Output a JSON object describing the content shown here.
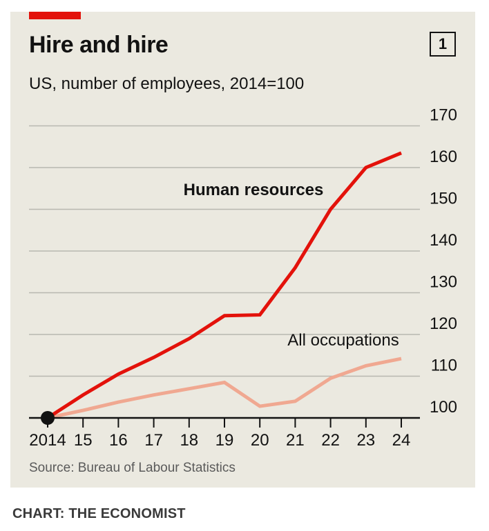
{
  "header": {
    "title": "Hire and hire",
    "subtitle": "US, number of employees, 2014=100",
    "chart_number": "1"
  },
  "footer": {
    "source": "Source: Bureau of Labour Statistics",
    "credit": "CHART: THE ECONOMIST"
  },
  "colors": {
    "background": "#ebe9e0",
    "accent": "#e3120b",
    "human_resources": "#e3120b",
    "all_occupations": "#f0a891",
    "axis": "#121212",
    "grid": "#b8b8b0"
  },
  "chart_data": {
    "type": "line",
    "title": "Hire and hire",
    "subtitle": "US, number of employees, 2014=100",
    "xlabel": "",
    "ylabel": "",
    "x": [
      "2014",
      "15",
      "16",
      "17",
      "18",
      "19",
      "20",
      "21",
      "22",
      "23",
      "24"
    ],
    "ylim": [
      100,
      170
    ],
    "yticks": [
      100,
      110,
      120,
      130,
      140,
      150,
      160,
      170
    ],
    "grid": true,
    "series": [
      {
        "name": "Human resources",
        "label": "Human resources",
        "color": "#e3120b",
        "values": [
          100,
          105.5,
          110.5,
          114.5,
          119,
          124.5,
          124.7,
          136,
          150,
          160,
          163.5
        ]
      },
      {
        "name": "All occupations",
        "label": "All occupations",
        "color": "#f0a891",
        "values": [
          100,
          101.8,
          103.8,
          105.5,
          107,
          108.5,
          102.8,
          104,
          109.5,
          112.5,
          114.2
        ]
      }
    ],
    "start_marker": {
      "x": "2014",
      "y": 100
    },
    "source": "Source: Bureau of Labour Statistics"
  }
}
